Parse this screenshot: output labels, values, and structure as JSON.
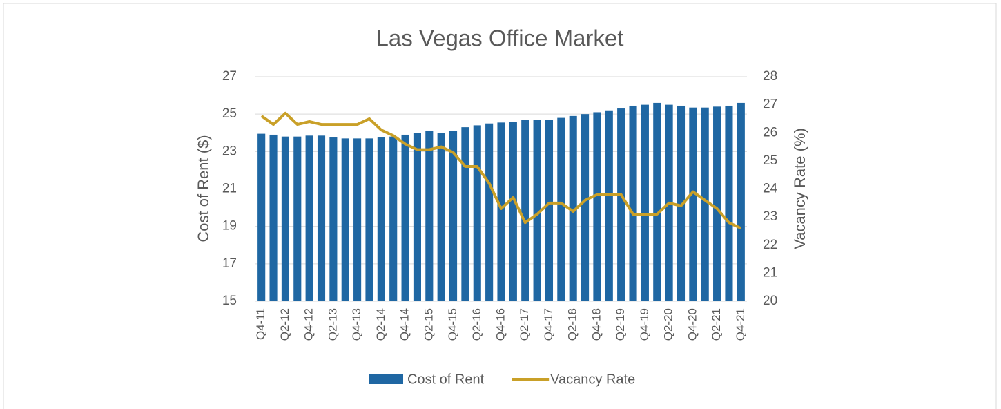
{
  "chart_data": {
    "type": "bar_line",
    "title": "Las Vegas Office Market",
    "y_label": "Cost of Rent ($)",
    "y2_label": "Vacancy Rate (%)",
    "categories": [
      "Q4-11",
      null,
      "Q2-12",
      null,
      "Q4-12",
      null,
      "Q2-13",
      null,
      "Q4-13",
      null,
      "Q2-14",
      null,
      "Q4-14",
      null,
      "Q2-15",
      null,
      "Q4-15",
      null,
      "Q2-16",
      null,
      "Q4-16",
      null,
      "Q2-17",
      null,
      "Q4-17",
      null,
      "Q2-18",
      null,
      "Q4-18",
      null,
      "Q2-19",
      null,
      "Q4-19",
      null,
      "Q2-20",
      null,
      "Q4-20",
      null,
      "Q2-21",
      null,
      "Q4-21"
    ],
    "series": [
      {
        "name": "Cost of Rent",
        "type": "bar",
        "color": "#1f67a3",
        "values": [
          23.95,
          23.9,
          23.8,
          23.8,
          23.85,
          23.85,
          23.75,
          23.7,
          23.7,
          23.7,
          23.75,
          23.8,
          23.9,
          24.0,
          24.1,
          24.0,
          24.1,
          24.3,
          24.4,
          24.5,
          24.55,
          24.6,
          24.7,
          24.7,
          24.7,
          24.8,
          24.9,
          25.0,
          25.1,
          25.2,
          25.3,
          25.45,
          25.5,
          25.6,
          25.5,
          25.45,
          25.35,
          25.35,
          25.4,
          25.45,
          25.6
        ]
      },
      {
        "name": "Vacancy Rate",
        "type": "line",
        "axis": "y2",
        "color": "#c9a028",
        "values": [
          26.6,
          26.3,
          26.7,
          26.3,
          26.4,
          26.3,
          26.3,
          26.3,
          26.3,
          26.5,
          26.1,
          25.9,
          25.6,
          25.4,
          25.4,
          25.5,
          25.3,
          24.8,
          24.8,
          24.2,
          23.3,
          23.7,
          22.8,
          23.1,
          23.5,
          23.5,
          23.2,
          23.6,
          23.8,
          23.8,
          23.8,
          23.1,
          23.1,
          23.1,
          23.5,
          23.4,
          23.9,
          23.6,
          23.3,
          22.8,
          22.6
        ]
      }
    ],
    "ylim": [
      15,
      27
    ],
    "yticks": [
      15,
      17,
      19,
      21,
      23,
      25,
      27
    ],
    "y2lim": [
      20,
      28
    ],
    "y2ticks": [
      20,
      21,
      22,
      23,
      24,
      25,
      26,
      27,
      28
    ],
    "grid": true,
    "legend": "bottom"
  }
}
